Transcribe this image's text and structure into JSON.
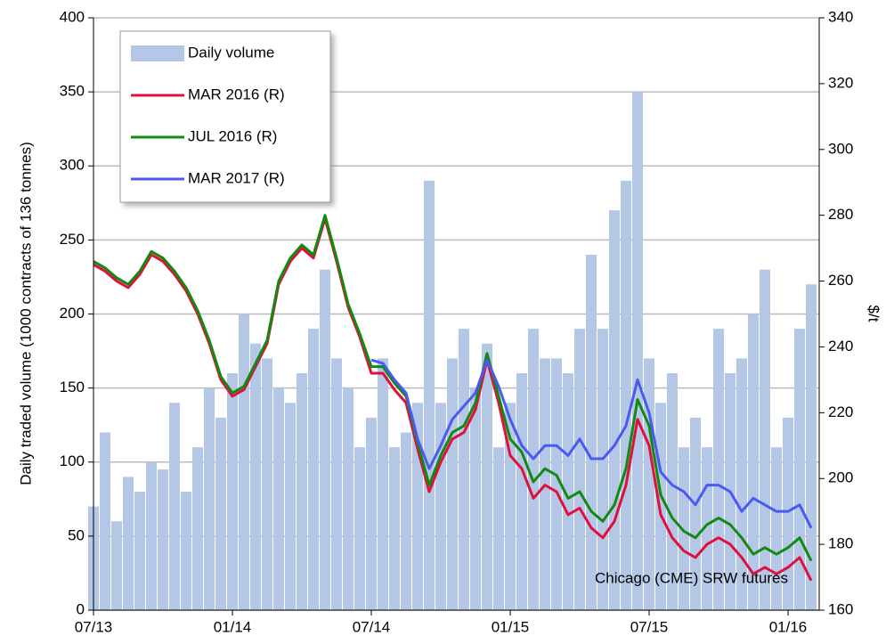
{
  "chart_data": {
    "type": "combo",
    "ylabel": "Daily  traded volume (1000 contracts of 136 tonnes)",
    "y2label": "$/t",
    "annotation": "Chicago (CME)  SRW futures",
    "categories": [
      "07/13",
      null,
      null,
      null,
      null,
      null,
      null,
      null,
      null,
      null,
      null,
      null,
      "01/14",
      null,
      null,
      null,
      null,
      null,
      null,
      null,
      null,
      null,
      null,
      null,
      "07/14",
      null,
      null,
      null,
      null,
      null,
      null,
      null,
      null,
      null,
      null,
      null,
      "01/15",
      null,
      null,
      null,
      null,
      null,
      null,
      null,
      null,
      null,
      null,
      null,
      "07/15",
      null,
      null,
      null,
      null,
      null,
      null,
      null,
      null,
      null,
      null,
      null,
      "01/16",
      null,
      null
    ],
    "ylim": [
      0,
      400
    ],
    "yticks": [
      0,
      50,
      100,
      150,
      200,
      250,
      300,
      350,
      400
    ],
    "y2lim": [
      160,
      340
    ],
    "y2ticks": [
      160,
      180,
      200,
      220,
      240,
      260,
      280,
      300,
      320,
      340
    ],
    "grid": true,
    "legend": "upper left",
    "series": [
      {
        "name": "Daily volume",
        "type": "bar",
        "color": "#b4c7e7",
        "values": [
          70,
          120,
          60,
          90,
          80,
          100,
          95,
          140,
          80,
          110,
          150,
          130,
          160,
          200,
          180,
          170,
          150,
          140,
          160,
          190,
          230,
          170,
          150,
          110,
          130,
          170,
          110,
          120,
          140,
          290,
          140,
          170,
          190,
          150,
          180,
          110,
          140,
          160,
          190,
          170,
          170,
          160,
          190,
          240,
          190,
          270,
          290,
          350,
          170,
          140,
          160,
          110,
          130,
          110,
          190,
          160,
          170,
          200,
          230,
          110,
          130,
          190,
          220
        ]
      },
      {
        "name": "MAR 2016 (R)",
        "type": "line",
        "axis": "y2",
        "color": "#e0103c",
        "values": [
          265,
          263,
          260,
          258,
          262,
          268,
          266,
          262,
          257,
          250,
          241,
          230,
          225,
          227,
          234,
          241,
          259,
          266,
          270,
          267,
          279,
          266,
          252,
          243,
          232,
          232,
          227,
          223,
          209,
          196,
          205,
          212,
          214,
          221,
          236,
          223,
          207,
          203,
          194,
          198,
          196,
          189,
          191,
          185,
          182,
          187,
          198,
          218,
          210,
          189,
          182,
          178,
          176,
          180,
          182,
          180,
          176,
          171,
          173,
          171,
          173,
          176,
          169
        ]
      },
      {
        "name": "JUL 2016 (R)",
        "type": "line",
        "axis": "y2",
        "color": "#128a12",
        "values": [
          266,
          264,
          261,
          259,
          263,
          269,
          267,
          263,
          258,
          251,
          242,
          231,
          226,
          228,
          235,
          242,
          260,
          267,
          271,
          268,
          280,
          267,
          253,
          244,
          234,
          234,
          229,
          225,
          211,
          198,
          207,
          214,
          216,
          223,
          238,
          225,
          212,
          208,
          199,
          203,
          201,
          194,
          196,
          190,
          187,
          192,
          203,
          224,
          216,
          195,
          188,
          184,
          182,
          186,
          188,
          186,
          182,
          177,
          179,
          177,
          179,
          182,
          175
        ]
      },
      {
        "name": "MAR 2017 (R)",
        "type": "line",
        "axis": "y2",
        "color": "#4a5af0",
        "values": [
          null,
          null,
          null,
          null,
          null,
          null,
          null,
          null,
          null,
          null,
          null,
          null,
          null,
          null,
          null,
          null,
          null,
          null,
          null,
          null,
          null,
          null,
          null,
          null,
          236,
          235,
          230,
          226,
          212,
          203,
          210,
          218,
          222,
          226,
          236,
          228,
          218,
          210,
          206,
          210,
          210,
          207,
          212,
          206,
          206,
          210,
          216,
          230,
          220,
          202,
          198,
          196,
          192,
          198,
          198,
          196,
          190,
          194,
          192,
          190,
          190,
          192,
          185
        ]
      }
    ]
  }
}
